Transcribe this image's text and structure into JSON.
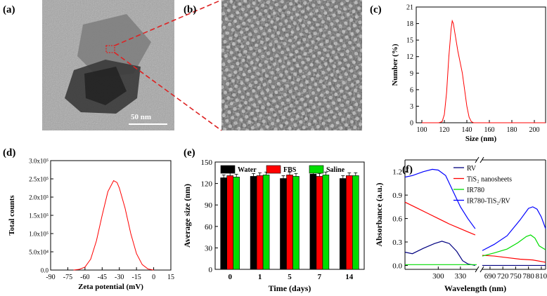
{
  "panels": {
    "a": {
      "label": "(a)",
      "scale_bar": "50 nm"
    },
    "b": {
      "label": "(b)"
    },
    "c": {
      "label": "(c)"
    },
    "d": {
      "label": "(d)"
    },
    "e": {
      "label": "(e)"
    },
    "f": {
      "label": "(f)"
    }
  },
  "colors": {
    "black": "#000000",
    "red": "#ff0000",
    "green": "#00dd00",
    "blue": "#0000ff",
    "dash": "#dd2222"
  },
  "chart_data": [
    {
      "id": "c",
      "type": "line",
      "xlabel": "Size (nm)",
      "ylabel": "Number (%)",
      "xlim": [
        95,
        210
      ],
      "ylim": [
        0,
        21
      ],
      "xticks": [
        100,
        120,
        140,
        160,
        180,
        200
      ],
      "yticks": [
        0,
        3,
        6,
        9,
        12,
        15,
        18,
        21
      ],
      "x": [
        100,
        115,
        118,
        120,
        122,
        124,
        126,
        127,
        128,
        130,
        132,
        134,
        136,
        138,
        140,
        142,
        144,
        146,
        150,
        210
      ],
      "y": [
        0,
        0,
        0.2,
        1.5,
        5.5,
        12,
        17,
        18.5,
        18,
        15.5,
        13,
        11,
        9,
        6,
        3,
        1,
        0.2,
        0,
        0,
        0
      ]
    },
    {
      "id": "d",
      "type": "line",
      "xlabel": "Zeta potential (mV)",
      "ylabel": "Total counts",
      "xlim": [
        -90,
        15
      ],
      "ylim": [
        0,
        300000
      ],
      "xticks": [
        -90,
        -75,
        -60,
        -45,
        -30,
        -15,
        0,
        15
      ],
      "yticks": [
        0,
        50000,
        100000,
        150000,
        200000,
        250000,
        300000
      ],
      "ytick_labels": [
        "0.0",
        "5.0x10⁴",
        "1.0x10⁵",
        "1.5x10⁵",
        "2.0x10⁵",
        "2.5x10⁵",
        "3.0x10⁵"
      ],
      "x": [
        -70,
        -65,
        -60,
        -55,
        -50,
        -45,
        -40,
        -35,
        -32,
        -30,
        -25,
        -20,
        -15,
        -10,
        -5,
        0
      ],
      "y": [
        0,
        2000,
        8000,
        30000,
        80000,
        150000,
        215000,
        245000,
        240000,
        225000,
        170000,
        100000,
        45000,
        15000,
        3000,
        0
      ]
    },
    {
      "id": "e",
      "type": "bar",
      "xlabel": "Time (days)",
      "ylabel": "Average size (nm)",
      "categories": [
        "0",
        "1",
        "5",
        "7",
        "14"
      ],
      "ylim": [
        0,
        150
      ],
      "yticks": [
        0,
        30,
        60,
        90,
        120,
        150
      ],
      "series": [
        {
          "name": "Water",
          "color": "#000000",
          "values": [
            128,
            130,
            127,
            133,
            127
          ]
        },
        {
          "name": "FBS",
          "color": "#ff0000",
          "values": [
            131,
            131,
            132,
            130,
            131
          ]
        },
        {
          "name": "Saline",
          "color": "#00dd00",
          "values": [
            129,
            132,
            130,
            132,
            131
          ]
        }
      ],
      "error": 4
    },
    {
      "id": "f",
      "type": "line",
      "xlabel": "Wavelength (nm)",
      "ylabel": "Absorbance (a.u.)",
      "ylim": [
        -0.05,
        1.35
      ],
      "yticks": [
        0.0,
        0.3,
        0.6,
        0.9,
        1.2
      ],
      "ytick_labels": [
        "0.0",
        "0.3",
        "0.6",
        "0.9",
        "1.2"
      ],
      "xlim_left": [
        255,
        352
      ],
      "xlim_right": [
        672,
        820
      ],
      "xticks_left": [
        300,
        330
      ],
      "xticks_right": [
        690,
        720,
        750,
        780,
        810
      ],
      "series": [
        {
          "name": "RV",
          "color": "#000080",
          "left": [
            [
              255,
              0.17
            ],
            [
              265,
              0.15
            ],
            [
              280,
              0.22
            ],
            [
              295,
              0.28
            ],
            [
              305,
              0.31
            ],
            [
              315,
              0.28
            ],
            [
              325,
              0.18
            ],
            [
              333,
              0.06
            ],
            [
              340,
              0.02
            ],
            [
              350,
              0.0
            ]
          ],
          "right": [
            [
              672,
              0.0
            ],
            [
              820,
              0.0
            ]
          ]
        },
        {
          "name": "TiS₂ nanosheets",
          "color": "#ff0000",
          "left": [
            [
              255,
              0.81
            ],
            [
              270,
              0.74
            ],
            [
              285,
              0.67
            ],
            [
              300,
              0.6
            ],
            [
              315,
              0.53
            ],
            [
              330,
              0.47
            ],
            [
              340,
              0.43
            ],
            [
              350,
              0.39
            ]
          ],
          "right": [
            [
              672,
              0.13
            ],
            [
              700,
              0.12
            ],
            [
              730,
              0.1
            ],
            [
              760,
              0.08
            ],
            [
              790,
              0.07
            ],
            [
              820,
              0.04
            ]
          ]
        },
        {
          "name": "IR780",
          "color": "#00dd00",
          "left": [
            [
              255,
              0.01
            ],
            [
              352,
              0.01
            ]
          ],
          "right": [
            [
              672,
              0.12
            ],
            [
              700,
              0.16
            ],
            [
              730,
              0.21
            ],
            [
              755,
              0.29
            ],
            [
              775,
              0.37
            ],
            [
              785,
              0.39
            ],
            [
              795,
              0.35
            ],
            [
              805,
              0.25
            ],
            [
              820,
              0.2
            ]
          ]
        },
        {
          "name": "IR780-TiS₂/RV",
          "color": "#0000ff",
          "left": [
            [
              255,
              1.13
            ],
            [
              265,
              1.15
            ],
            [
              280,
              1.2
            ],
            [
              292,
              1.23
            ],
            [
              300,
              1.22
            ],
            [
              310,
              1.15
            ],
            [
              320,
              0.95
            ],
            [
              330,
              0.75
            ],
            [
              340,
              0.6
            ],
            [
              350,
              0.47
            ]
          ],
          "right": [
            [
              672,
              0.19
            ],
            [
              700,
              0.27
            ],
            [
              730,
              0.38
            ],
            [
              760,
              0.58
            ],
            [
              780,
              0.73
            ],
            [
              790,
              0.75
            ],
            [
              800,
              0.72
            ],
            [
              810,
              0.62
            ],
            [
              820,
              0.47
            ]
          ]
        }
      ]
    }
  ]
}
